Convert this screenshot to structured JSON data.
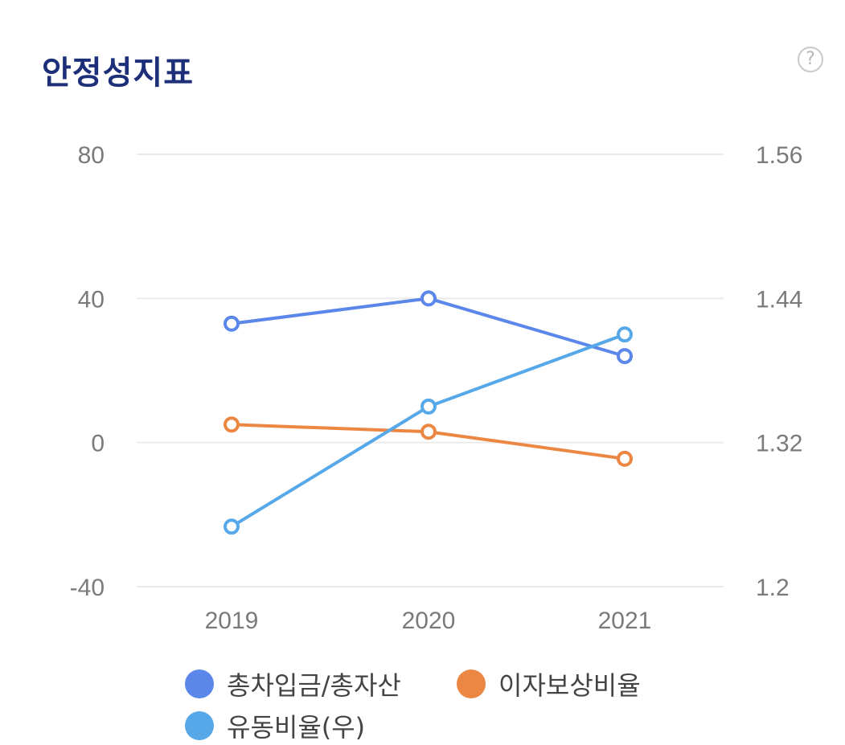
{
  "header": {
    "title": "안정성지표",
    "help_label": "?"
  },
  "chart_data": {
    "type": "line",
    "title": "안정성지표",
    "categories": [
      "2019",
      "2020",
      "2021"
    ],
    "y_left": {
      "ticks": [
        "80",
        "40",
        "0",
        "-40"
      ],
      "range": [
        -40,
        80
      ]
    },
    "y_right": {
      "ticks": [
        "1.56",
        "1.44",
        "1.32",
        "1.2"
      ],
      "range": [
        1.2,
        1.56
      ]
    },
    "series": [
      {
        "name": "총차입금/총자산",
        "axis": "left",
        "color": "#5b86ea",
        "values": [
          33,
          40,
          24
        ]
      },
      {
        "name": "이자보상비율",
        "axis": "left",
        "color": "#ec8643",
        "values": [
          5,
          3,
          -4.5
        ]
      },
      {
        "name": "유동비율(우)",
        "axis": "right",
        "color": "#56a8e8",
        "values": [
          1.25,
          1.35,
          1.41
        ]
      }
    ]
  }
}
